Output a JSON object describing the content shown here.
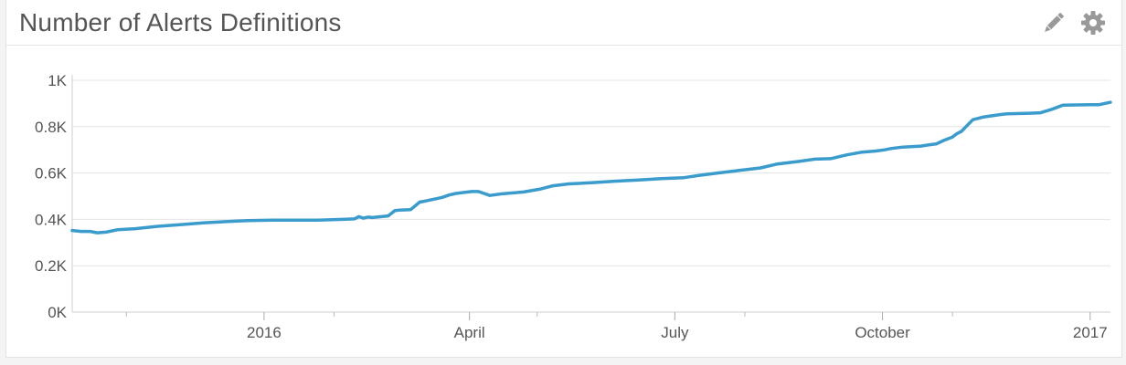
{
  "widget": {
    "title": "Number of Alerts Definitions",
    "edit_icon": "pencil-icon",
    "settings_icon": "gear-icon"
  },
  "colors": {
    "line": "#3a9ccd",
    "grid": "#e4e4e4",
    "tick_text": "#555555",
    "icon": "#999999"
  },
  "chart_data": {
    "type": "line",
    "title": "Number of Alerts Definitions",
    "xlabel": "",
    "ylabel": "",
    "ylim": [
      0,
      1000
    ],
    "xlim": [
      "2015-10-08",
      "2017-01-10"
    ],
    "y_ticks": [
      {
        "value": 0,
        "label": "0K"
      },
      {
        "value": 200,
        "label": "0.2K"
      },
      {
        "value": 400,
        "label": "0.4K"
      },
      {
        "value": 600,
        "label": "0.6K"
      },
      {
        "value": 800,
        "label": "0.8K"
      },
      {
        "value": 1000,
        "label": "1K"
      }
    ],
    "x_ticks": [
      {
        "date": "2016-01-01",
        "label": "2016"
      },
      {
        "date": "2016-04-01",
        "label": "April"
      },
      {
        "date": "2016-07-01",
        "label": "July"
      },
      {
        "date": "2016-10-01",
        "label": "October"
      },
      {
        "date": "2017-01-01",
        "label": "2017"
      }
    ],
    "x_minor_ticks": [
      "2015-11-01",
      "2016-02-01",
      "2016-05-01",
      "2016-08-01",
      "2016-11-01"
    ],
    "grid": true,
    "legend": "none",
    "series": [
      {
        "x": [
          "2015-10-08",
          "2015-10-12",
          "2015-10-16",
          "2015-10-19",
          "2015-10-23",
          "2015-10-28",
          "2015-11-05",
          "2015-11-15",
          "2015-11-26",
          "2015-12-05",
          "2015-12-15",
          "2015-12-25",
          "2016-01-05",
          "2016-01-15",
          "2016-01-25",
          "2016-02-05",
          "2016-02-10",
          "2016-02-12",
          "2016-02-14",
          "2016-02-16",
          "2016-02-18",
          "2016-02-25",
          "2016-02-28",
          "2016-03-01",
          "2016-03-06",
          "2016-03-10",
          "2016-03-12",
          "2016-03-20",
          "2016-03-23",
          "2016-03-26",
          "2016-04-02",
          "2016-04-05",
          "2016-04-10",
          "2016-04-15",
          "2016-04-25",
          "2016-05-02",
          "2016-05-08",
          "2016-05-15",
          "2016-05-25",
          "2016-06-05",
          "2016-06-15",
          "2016-06-25",
          "2016-07-05",
          "2016-07-12",
          "2016-07-20",
          "2016-07-30",
          "2016-08-08",
          "2016-08-15",
          "2016-08-25",
          "2016-09-01",
          "2016-09-08",
          "2016-09-15",
          "2016-09-22",
          "2016-09-28",
          "2016-10-02",
          "2016-10-05",
          "2016-10-10",
          "2016-10-18",
          "2016-10-22",
          "2016-10-25",
          "2016-10-28",
          "2016-11-01",
          "2016-11-03",
          "2016-11-05",
          "2016-11-10",
          "2016-11-15",
          "2016-11-22",
          "2016-11-25",
          "2016-12-05",
          "2016-12-10",
          "2016-12-15",
          "2016-12-20",
          "2017-01-01",
          "2017-01-05",
          "2017-01-10"
        ],
        "y": [
          352,
          348,
          348,
          342,
          345,
          355,
          360,
          370,
          378,
          385,
          390,
          395,
          397,
          397,
          397,
          400,
          402,
          412,
          405,
          410,
          408,
          415,
          438,
          440,
          442,
          475,
          478,
          495,
          505,
          512,
          520,
          520,
          503,
          510,
          518,
          530,
          545,
          553,
          558,
          565,
          570,
          576,
          580,
          590,
          600,
          612,
          622,
          638,
          650,
          660,
          662,
          678,
          690,
          695,
          700,
          706,
          712,
          716,
          722,
          726,
          740,
          755,
          770,
          780,
          830,
          842,
          852,
          855,
          858,
          860,
          875,
          893,
          895,
          895,
          905
        ]
      }
    ]
  }
}
